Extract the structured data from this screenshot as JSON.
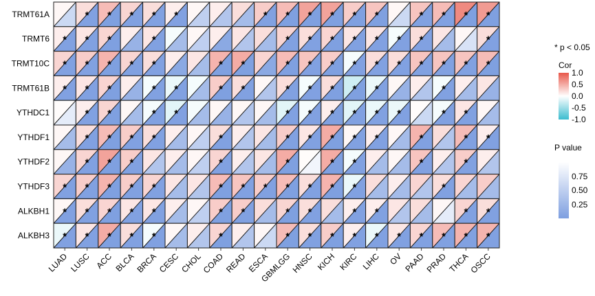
{
  "chart_data": {
    "type": "heatmap",
    "rows": [
      "TRMT61A",
      "TRMT6",
      "TRMT10C",
      "TRMT61B",
      "YTHDC1",
      "YTHDF1",
      "YTHDF2",
      "YTHDF3",
      "ALKBH1",
      "ALKBH3"
    ],
    "columns": [
      "LUAD",
      "LUSC",
      "ACC",
      "BLCA",
      "BRCA",
      "CESC",
      "CHOL",
      "COAD",
      "READ",
      "ESCA",
      "GBMLGG",
      "HNSC",
      "KICH",
      "KIRC",
      "LIHC",
      "OV",
      "PAAD",
      "PRAD",
      "THCA",
      "OSCC"
    ],
    "cor": [
      [
        0.05,
        0.2,
        0.4,
        0.25,
        0.2,
        0.1,
        0.05,
        0.1,
        0.2,
        0.3,
        0.4,
        0.55,
        0.55,
        0.3,
        0.35,
        0.05,
        0.35,
        0.4,
        0.7,
        0.6
      ],
      [
        0.1,
        0.15,
        0.25,
        0.1,
        0.15,
        -0.05,
        0.05,
        0.1,
        0.15,
        0.2,
        0.25,
        0.2,
        0.25,
        0.15,
        0.15,
        -0.05,
        0.2,
        0.15,
        0.05,
        0.2
      ],
      [
        0.25,
        0.3,
        0.45,
        0.25,
        0.2,
        0.1,
        0.15,
        0.45,
        0.5,
        0.25,
        0.4,
        0.35,
        0.3,
        -0.05,
        0.2,
        0.2,
        0.35,
        0.35,
        0.35,
        0.4
      ],
      [
        0.1,
        0.15,
        0.25,
        0.1,
        -0.05,
        -0.1,
        -0.05,
        0.3,
        0.2,
        0.05,
        0.2,
        -0.05,
        0.2,
        -0.25,
        -0.1,
        0.05,
        0.1,
        -0.05,
        0.1,
        0.15
      ],
      [
        0.02,
        0.1,
        0.25,
        0.05,
        -0.05,
        -0.15,
        -0.05,
        0.05,
        0.05,
        0.05,
        -0.15,
        -0.05,
        0.1,
        -0.15,
        -0.1,
        -0.1,
        0.02,
        -0.05,
        0.15,
        0.05
      ],
      [
        0.05,
        0.2,
        0.4,
        0.3,
        0.2,
        0.1,
        0.05,
        0.2,
        0.1,
        0.15,
        0.3,
        0.15,
        0.5,
        0.05,
        0.1,
        0.05,
        0.45,
        0.2,
        0.4,
        0.1
      ],
      [
        0.05,
        0.25,
        0.55,
        0.3,
        0.15,
        0.1,
        0.05,
        0.25,
        0.1,
        0.15,
        0.5,
        0.02,
        0.5,
        -0.05,
        0.1,
        0.05,
        0.35,
        0.1,
        0.3,
        0.1
      ],
      [
        0.25,
        0.3,
        0.45,
        0.3,
        0.25,
        0.15,
        0.15,
        0.4,
        0.35,
        0.3,
        0.4,
        0.2,
        0.45,
        -0.1,
        0.2,
        0.1,
        0.25,
        0.2,
        0.25,
        0.3
      ],
      [
        0.05,
        0.2,
        0.25,
        0.15,
        0.15,
        0.1,
        0.05,
        0.3,
        0.3,
        0.2,
        0.25,
        0.2,
        0.2,
        0.1,
        0.1,
        0.15,
        0.2,
        0.05,
        0.25,
        0.2
      ],
      [
        -0.1,
        0.15,
        0.5,
        0.2,
        -0.05,
        0.05,
        0.1,
        0.25,
        0.1,
        0.05,
        0.4,
        0.2,
        0.3,
        0.1,
        -0.1,
        0.15,
        0.25,
        0.4,
        0.45,
        0.45
      ]
    ],
    "pvalue": [
      [
        0.6,
        0.02,
        0.01,
        0.02,
        0.02,
        0.02,
        0.5,
        0.4,
        0.3,
        0.02,
        0.01,
        0.01,
        0.01,
        0.01,
        0.01,
        0.6,
        0.02,
        0.02,
        0.01,
        0.01
      ],
      [
        0.02,
        0.02,
        0.01,
        0.2,
        0.02,
        0.3,
        0.5,
        0.1,
        0.4,
        0.3,
        0.02,
        0.02,
        0.01,
        0.02,
        0.02,
        0.02,
        0.02,
        0.3,
        0.7,
        0.02
      ],
      [
        0.02,
        0.02,
        0.01,
        0.02,
        0.02,
        0.1,
        0.3,
        0.01,
        0.01,
        0.1,
        0.01,
        0.02,
        0.01,
        0.02,
        0.02,
        0.02,
        0.02,
        0.02,
        0.02,
        0.01
      ],
      [
        0.02,
        0.02,
        0.01,
        0.2,
        0.02,
        0.02,
        0.3,
        0.01,
        0.02,
        0.4,
        0.02,
        0.02,
        0.01,
        0.01,
        0.02,
        0.2,
        0.4,
        0.02,
        0.3,
        0.2
      ],
      [
        0.8,
        0.02,
        0.01,
        0.3,
        0.02,
        0.02,
        0.3,
        0.2,
        0.4,
        0.3,
        0.02,
        0.02,
        0.01,
        0.02,
        0.02,
        0.02,
        0.6,
        0.02,
        0.02,
        0.3
      ],
      [
        0.3,
        0.02,
        0.01,
        0.02,
        0.02,
        0.3,
        0.5,
        0.02,
        0.4,
        0.3,
        0.02,
        0.02,
        0.01,
        0.02,
        0.02,
        0.3,
        0.02,
        0.4,
        0.02,
        0.02
      ],
      [
        0.2,
        0.02,
        0.01,
        0.02,
        0.4,
        0.3,
        0.5,
        0.02,
        0.4,
        0.3,
        0.01,
        0.9,
        0.01,
        0.02,
        0.3,
        0.3,
        0.02,
        0.4,
        0.02,
        0.4
      ],
      [
        0.02,
        0.02,
        0.01,
        0.02,
        0.02,
        0.3,
        0.4,
        0.01,
        0.02,
        0.02,
        0.01,
        0.02,
        0.01,
        0.02,
        0.3,
        0.3,
        0.4,
        0.02,
        0.3,
        0.3
      ],
      [
        0.02,
        0.02,
        0.01,
        0.02,
        0.02,
        0.3,
        0.5,
        0.01,
        0.02,
        0.3,
        0.01,
        0.02,
        0.3,
        0.02,
        0.02,
        0.4,
        0.3,
        0.8,
        0.02,
        0.02
      ],
      [
        0.02,
        0.02,
        0.01,
        0.02,
        0.02,
        0.3,
        0.4,
        0.01,
        0.4,
        0.6,
        0.01,
        0.02,
        0.01,
        0.02,
        0.02,
        0.02,
        0.02,
        0.02,
        0.02,
        0.02
      ]
    ],
    "significance_marker": "*",
    "significance_note": "* p < 0.05",
    "cor_legend": {
      "title": "Cor",
      "ticks": [
        "1.0",
        "0.5",
        "0.0",
        "-0.5",
        "-1.0"
      ],
      "range": [
        -1,
        1
      ]
    },
    "p_legend": {
      "title": "P value",
      "ticks": [
        "0.75",
        "0.50",
        "0.25"
      ],
      "range": [
        0,
        1
      ]
    },
    "colors": {
      "positive": "#e8584a",
      "neutral": "#ffffff",
      "negative": "#3bbccf",
      "p_low": "#7e9fe0",
      "p_high": "#ffffff"
    },
    "grid": true,
    "legend_position": "right"
  }
}
